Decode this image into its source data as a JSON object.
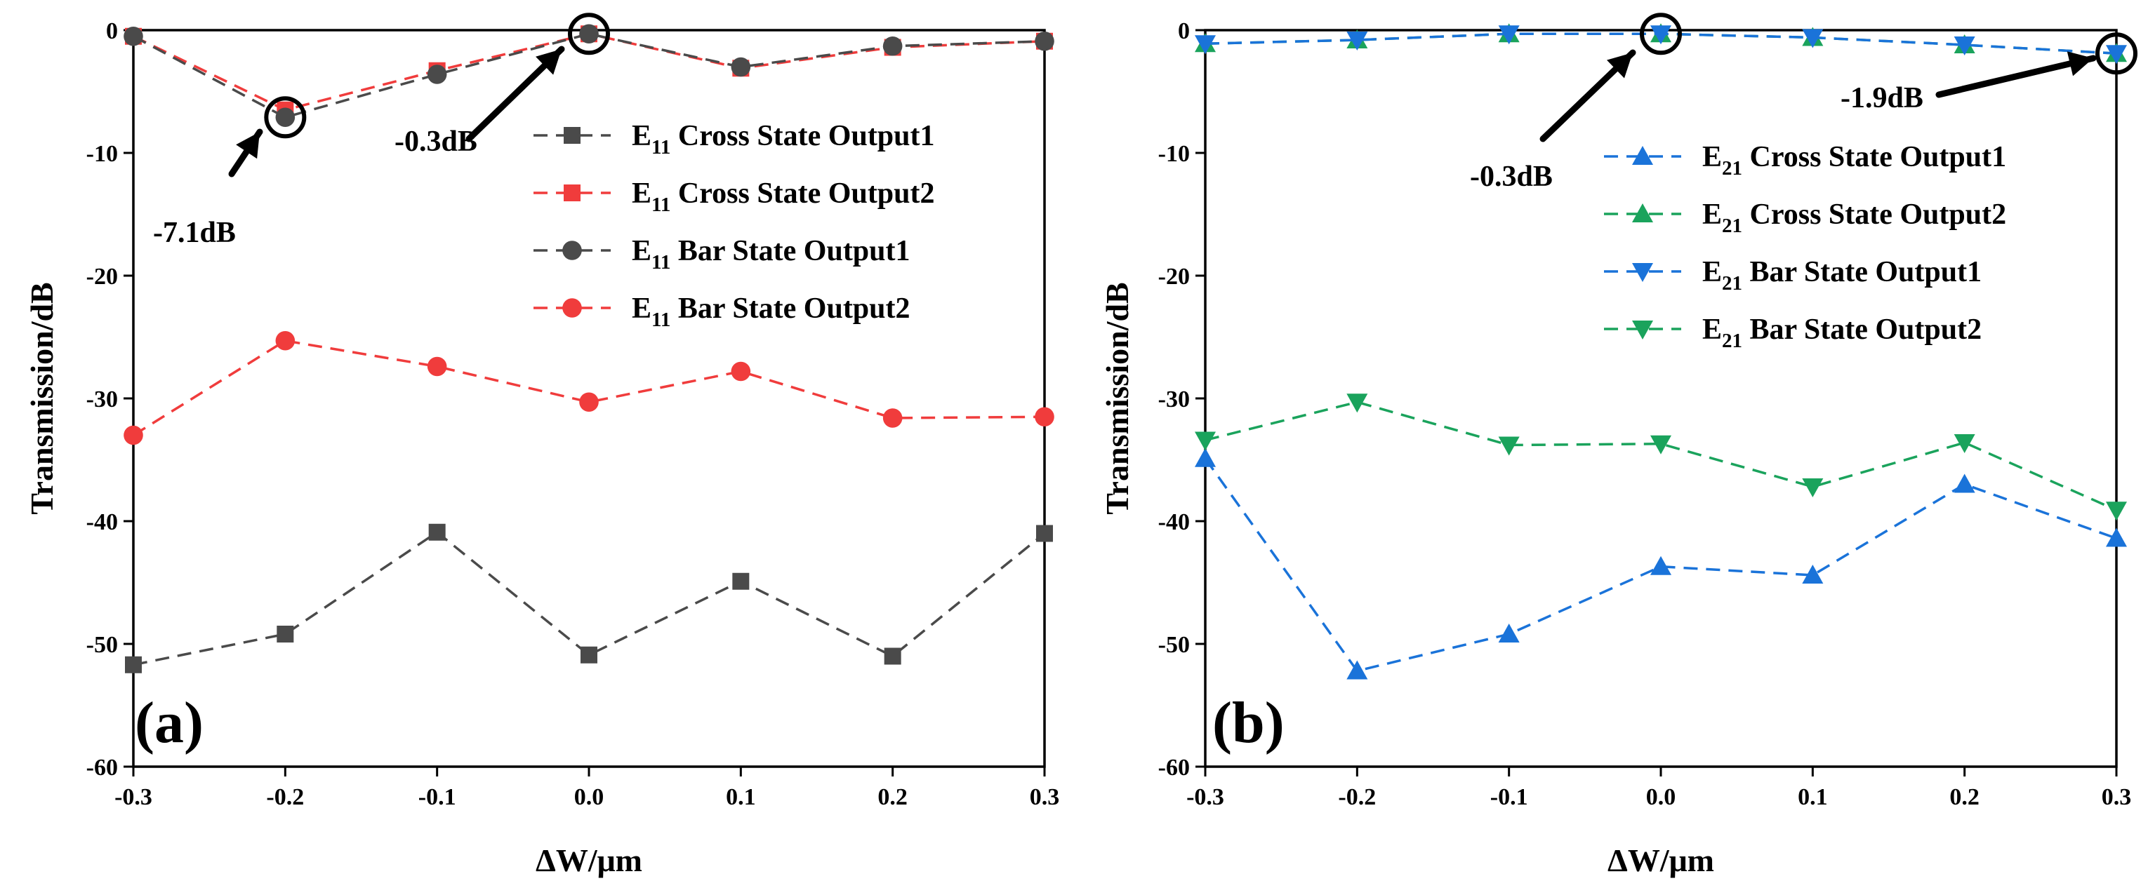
{
  "chart_data": [
    {
      "type": "line",
      "panel_label": "(a)",
      "xlabel": "ΔW/μm",
      "ylabel": "Transmission/dB",
      "xlim": [
        -0.3,
        0.3
      ],
      "ylim": [
        -60,
        0
      ],
      "xticks": [
        "-0.3",
        "-0.2",
        "-0.1",
        "0.0",
        "0.1",
        "0.2",
        "0.3"
      ],
      "yticks": [
        "0",
        "-10",
        "-20",
        "-30",
        "-40",
        "-50",
        "-60"
      ],
      "x": [
        -0.3,
        -0.2,
        -0.1,
        0.0,
        0.1,
        0.2,
        0.3
      ],
      "legend_position": "top-right",
      "series": [
        {
          "name": "E11 Cross State Output1",
          "legend_main": "E",
          "legend_sub": "11",
          "legend_rest": " Cross State Output1",
          "marker": "square",
          "color": "#4a4a4a",
          "values": [
            -51.7,
            -49.2,
            -40.9,
            -50.9,
            -44.9,
            -51.0,
            -41.0
          ]
        },
        {
          "name": "E11 Cross State Output2",
          "legend_main": "E",
          "legend_sub": "11",
          "legend_rest": " Cross State Output2",
          "marker": "square",
          "color": "#f03c3c",
          "values": [
            -0.5,
            -6.5,
            -3.3,
            -0.3,
            -3.1,
            -1.4,
            -0.9
          ]
        },
        {
          "name": "E11 Bar State Output1",
          "legend_main": "E",
          "legend_sub": "11",
          "legend_rest": " Bar State Output1",
          "marker": "circle",
          "color": "#4a4a4a",
          "values": [
            -0.5,
            -7.1,
            -3.6,
            -0.3,
            -3.0,
            -1.3,
            -0.9
          ]
        },
        {
          "name": "E11 Bar State Output2",
          "legend_main": "E",
          "legend_sub": "11",
          "legend_rest": " Bar State Output2",
          "marker": "circle",
          "color": "#f03c3c",
          "values": [
            -33.0,
            -25.3,
            -27.4,
            -30.3,
            -27.8,
            -31.6,
            -31.5
          ]
        }
      ],
      "annotations": [
        {
          "text": "-7.1dB",
          "x": -0.2,
          "y": -7.1
        },
        {
          "text": "-0.3dB",
          "x": 0.0,
          "y": -0.3
        }
      ]
    },
    {
      "type": "line",
      "panel_label": "(b)",
      "xlabel": "ΔW/μm",
      "ylabel": "Transmission/dB",
      "xlim": [
        -0.3,
        0.3
      ],
      "ylim": [
        -60,
        0
      ],
      "xticks": [
        "-0.3",
        "-0.2",
        "-0.1",
        "0.0",
        "0.1",
        "0.2",
        "0.3"
      ],
      "yticks": [
        "0",
        "-10",
        "-20",
        "-30",
        "-40",
        "-50",
        "-60"
      ],
      "x": [
        -0.3,
        -0.2,
        -0.1,
        0.0,
        0.1,
        0.2,
        0.3
      ],
      "legend_position": "top-right",
      "series": [
        {
          "name": "E21 Cross State Output1",
          "legend_main": "E",
          "legend_sub": "21",
          "legend_rest": " Cross State Output1",
          "marker": "triangle-up",
          "color": "#1a73d9",
          "values": [
            -34.9,
            -52.2,
            -49.2,
            -43.7,
            -44.4,
            -37.0,
            -41.4
          ]
        },
        {
          "name": "E21 Cross State Output2",
          "legend_main": "E",
          "legend_sub": "21",
          "legend_rest": " Cross State Output2",
          "marker": "triangle-up",
          "color": "#1aa35c",
          "values": [
            -1.1,
            -0.8,
            -0.3,
            -0.3,
            -0.6,
            -1.2,
            -1.9
          ]
        },
        {
          "name": "E21 Bar State Output1",
          "legend_main": "E",
          "legend_sub": "21",
          "legend_rest": " Bar State Output1",
          "marker": "triangle-down",
          "color": "#1a73d9",
          "values": [
            -1.1,
            -0.8,
            -0.3,
            -0.3,
            -0.6,
            -1.2,
            -1.9
          ]
        },
        {
          "name": "E21 Bar State Output2",
          "legend_main": "E",
          "legend_sub": "21",
          "legend_rest": " Bar State Output2",
          "marker": "triangle-down",
          "color": "#1aa35c",
          "values": [
            -33.4,
            -30.3,
            -33.8,
            -33.7,
            -37.2,
            -33.6,
            -39.1
          ]
        }
      ],
      "annotations": [
        {
          "text": "-0.3dB",
          "x": 0.0,
          "y": -0.3
        },
        {
          "text": "-1.9dB",
          "x": 0.3,
          "y": -1.9
        }
      ]
    }
  ]
}
